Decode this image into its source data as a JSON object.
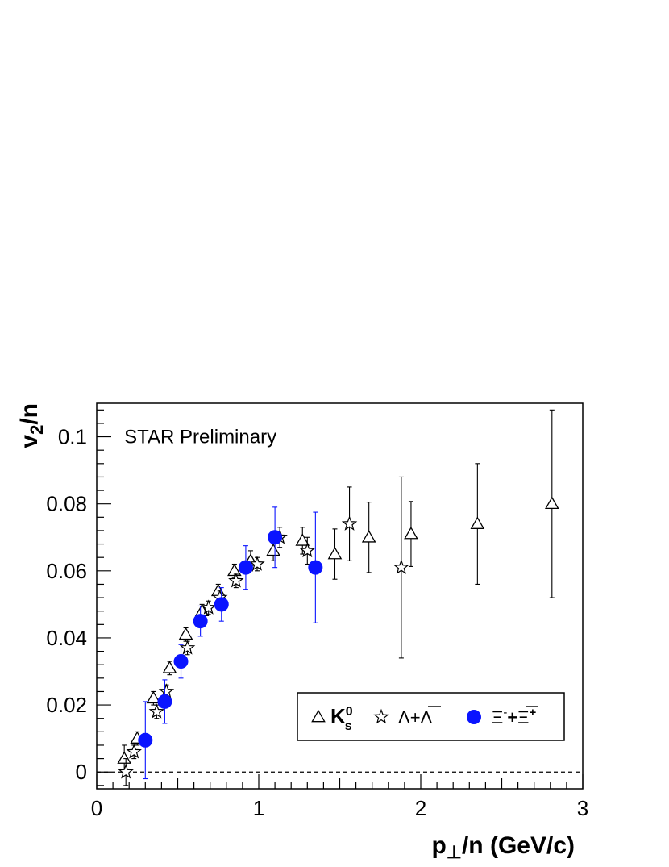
{
  "chart_data": {
    "type": "scatter",
    "note": "STAR Preliminary",
    "xlabel": {
      "main": "p",
      "sub": "⊥",
      "rest": "/n (GeV/c)"
    },
    "ylabel": {
      "main": "v",
      "sub": "2",
      "rest": "/n"
    },
    "xlim": [
      0,
      3
    ],
    "ylim": [
      -0.005,
      0.11
    ],
    "x_ticks": [
      0,
      1,
      2,
      3
    ],
    "x_tick_labels": [
      "0",
      "1",
      "2",
      "3"
    ],
    "y_ticks": [
      0,
      0.02,
      0.04,
      0.06,
      0.08,
      0.1
    ],
    "y_tick_labels": [
      "0",
      "0.02",
      "0.04",
      "0.06",
      "0.08",
      "0.1"
    ],
    "reference_line": {
      "y": 0,
      "style": "dashed"
    },
    "legend_position": "bottom-right",
    "series": [
      {
        "name": "K_s^0",
        "legend": {
          "main": "K",
          "sub": "s",
          "sup": "0"
        },
        "marker": "open-triangle",
        "color": "#000000",
        "points": [
          {
            "x": 0.17,
            "y": 0.004,
            "err": 0.004
          },
          {
            "x": 0.25,
            "y": 0.01,
            "err": 0.002
          },
          {
            "x": 0.35,
            "y": 0.022,
            "err": 0.002
          },
          {
            "x": 0.45,
            "y": 0.031,
            "err": 0.002
          },
          {
            "x": 0.55,
            "y": 0.041,
            "err": 0.002
          },
          {
            "x": 0.65,
            "y": 0.048,
            "err": 0.002
          },
          {
            "x": 0.75,
            "y": 0.054,
            "err": 0.002
          },
          {
            "x": 0.85,
            "y": 0.06,
            "err": 0.002
          },
          {
            "x": 0.95,
            "y": 0.063,
            "err": 0.003
          },
          {
            "x": 1.09,
            "y": 0.066,
            "err": 0.003
          },
          {
            "x": 1.27,
            "y": 0.069,
            "err": 0.004
          },
          {
            "x": 1.47,
            "y": 0.065,
            "err": 0.0075
          },
          {
            "x": 1.68,
            "y": 0.07,
            "err": 0.0105
          },
          {
            "x": 1.94,
            "y": 0.071,
            "err": 0.0097
          },
          {
            "x": 2.35,
            "y": 0.074,
            "err": 0.018
          },
          {
            "x": 2.81,
            "y": 0.08,
            "err": 0.028
          }
        ]
      },
      {
        "name": "Λ+Λ̄",
        "legend": {
          "text1": "Λ+",
          "overline": "Λ"
        },
        "marker": "open-star",
        "color": "#000000",
        "points": [
          {
            "x": 0.18,
            "y": 0.0,
            "err": 0.004
          },
          {
            "x": 0.23,
            "y": 0.006,
            "err": 0.002
          },
          {
            "x": 0.37,
            "y": 0.018,
            "err": 0.002
          },
          {
            "x": 0.43,
            "y": 0.024,
            "err": 0.002
          },
          {
            "x": 0.56,
            "y": 0.037,
            "err": 0.002
          },
          {
            "x": 0.69,
            "y": 0.049,
            "err": 0.002
          },
          {
            "x": 0.76,
            "y": 0.052,
            "err": 0.002
          },
          {
            "x": 0.86,
            "y": 0.057,
            "err": 0.002
          },
          {
            "x": 0.99,
            "y": 0.062,
            "err": 0.002
          },
          {
            "x": 1.13,
            "y": 0.07,
            "err": 0.003
          },
          {
            "x": 1.3,
            "y": 0.066,
            "err": 0.004
          },
          {
            "x": 1.56,
            "y": 0.074,
            "err": 0.011
          },
          {
            "x": 1.88,
            "y": 0.061,
            "err": 0.027
          }
        ]
      },
      {
        "name": "Ξ⁻+Ξ̄⁺",
        "legend": {
          "text1": "Ξ",
          "sup1": "-",
          "plus": "+",
          "overline": "Ξ",
          "sup2": "+"
        },
        "marker": "filled-circle",
        "color": "#0a14ff",
        "points": [
          {
            "x": 0.3,
            "y": 0.0095,
            "err": 0.0115
          },
          {
            "x": 0.42,
            "y": 0.021,
            "err": 0.0065
          },
          {
            "x": 0.52,
            "y": 0.033,
            "err": 0.005
          },
          {
            "x": 0.64,
            "y": 0.045,
            "err": 0.0045
          },
          {
            "x": 0.77,
            "y": 0.05,
            "err": 0.005
          },
          {
            "x": 0.92,
            "y": 0.061,
            "err": 0.0065
          },
          {
            "x": 1.1,
            "y": 0.07,
            "err": 0.009
          },
          {
            "x": 1.35,
            "y": 0.061,
            "err": 0.0165
          }
        ]
      }
    ]
  }
}
